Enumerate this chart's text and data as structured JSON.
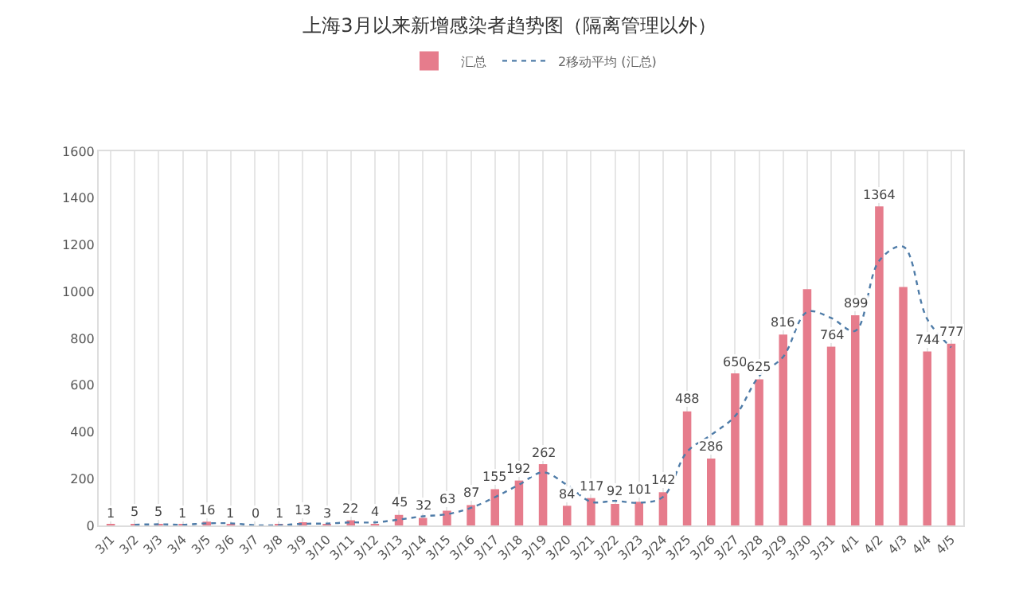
{
  "chart_data": {
    "type": "bar",
    "title": "上海3月以来新增感染者趋势图（隔离管理以外）",
    "categories": [
      "3/1",
      "3/2",
      "3/3",
      "3/4",
      "3/5",
      "3/6",
      "3/7",
      "3/8",
      "3/9",
      "3/10",
      "3/11",
      "3/12",
      "3/13",
      "3/14",
      "3/15",
      "3/16",
      "3/17",
      "3/18",
      "3/19",
      "3/20",
      "3/21",
      "3/22",
      "3/23",
      "3/24",
      "3/25",
      "3/26",
      "3/27",
      "3/28",
      "3/29",
      "3/30",
      "3/31",
      "4/1",
      "4/2",
      "4/3",
      "4/4",
      "4/5"
    ],
    "series": [
      {
        "name": "汇总",
        "color": "#e67c8c",
        "values": [
          1,
          5,
          5,
          1,
          16,
          1,
          0,
          1,
          13,
          3,
          22,
          4,
          45,
          32,
          63,
          87,
          155,
          192,
          262,
          84,
          117,
          92,
          101,
          142,
          488,
          286,
          650,
          625,
          816,
          1010,
          764,
          899,
          1364,
          1020,
          744,
          777
        ],
        "value_labels": [
          "1",
          "5",
          "5",
          "1",
          "16",
          "1",
          "0",
          "1",
          "13",
          "3",
          "22",
          "4",
          "45",
          "32",
          "63",
          "87",
          "155",
          "192",
          "262",
          "84",
          "117",
          "92",
          "101",
          "142",
          "488",
          "286",
          "650",
          "625",
          "816",
          null,
          "764",
          "899",
          "1364",
          null,
          "744",
          "777"
        ]
      },
      {
        "name": "2移动平均 (汇总)",
        "type": "line",
        "color": "#4f7ca8",
        "line_style": "dotted",
        "marker": "none",
        "values": [
          null,
          3,
          5,
          3,
          9,
          9,
          1,
          1,
          7,
          8,
          13,
          13,
          25,
          39,
          48,
          75,
          121,
          174,
          227,
          173,
          101,
          105,
          97,
          122,
          315,
          387,
          468,
          638,
          721,
          913,
          887,
          832,
          1132,
          1192,
          882,
          761
        ]
      }
    ],
    "ylim": [
      0,
      1600
    ],
    "yticks": [
      0,
      200,
      400,
      600,
      800,
      1000,
      1200,
      1400,
      1600
    ],
    "grid": "x",
    "legend": "top"
  }
}
